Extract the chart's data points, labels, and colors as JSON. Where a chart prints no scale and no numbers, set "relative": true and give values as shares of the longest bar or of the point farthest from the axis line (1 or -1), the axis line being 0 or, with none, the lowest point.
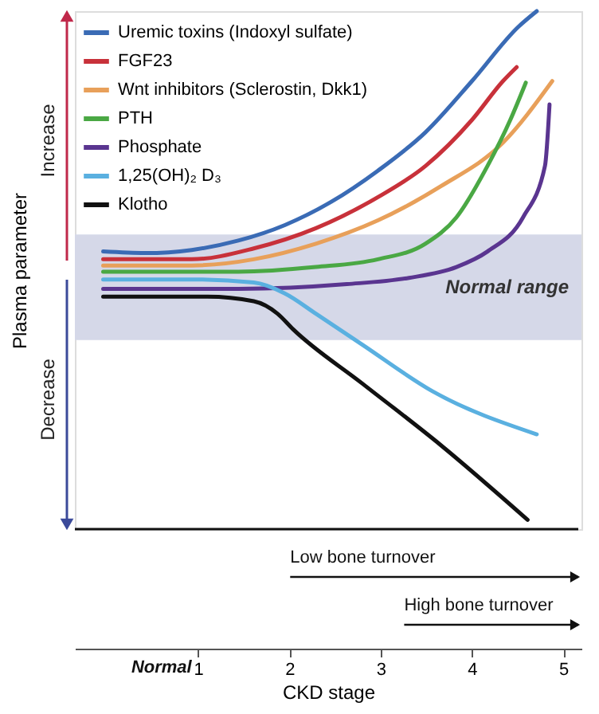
{
  "chart_data": {
    "type": "line",
    "relative": true,
    "ylabel": "Plasma parameter",
    "xlabel": "CKD stage",
    "xlim": [
      -0.35,
      5.2
    ],
    "xticks": [
      1,
      2,
      3,
      4,
      5
    ],
    "grid": false,
    "legend": "top left",
    "marker": "none",
    "line_style": "solid",
    "series": [
      {
        "name": "Uremic toxins (Indoxyl sulfate)",
        "color": "#3a6bb5",
        "x": [
          -0.04,
          0.42,
          0.93,
          1.44,
          1.95,
          2.46,
          2.97,
          3.49,
          4.0,
          4.51,
          4.71
        ],
        "values": [
          0.536,
          0.533,
          0.539,
          0.557,
          0.587,
          0.632,
          0.692,
          0.766,
          0.865,
          0.97,
          1
        ]
      },
      {
        "name": "FGF23",
        "color": "#c8313a",
        "x": [
          -0.04,
          0.93,
          1.61,
          2.29,
          2.97,
          3.49,
          4.0,
          4.34,
          4.49
        ],
        "values": [
          0.521,
          0.521,
          0.542,
          0.581,
          0.641,
          0.701,
          0.79,
          0.865,
          0.892
        ]
      },
      {
        "name": "Wnt inhibitors (Sclerostin, Dkk1)",
        "color": "#e8a05a",
        "x": [
          -0.04,
          0.93,
          1.61,
          2.29,
          2.97,
          3.66,
          4.34,
          4.88
        ],
        "values": [
          0.509,
          0.509,
          0.521,
          0.551,
          0.596,
          0.662,
          0.746,
          0.865
        ]
      },
      {
        "name": "PTH",
        "color": "#4aa844",
        "x": [
          -0.04,
          1.44,
          2.29,
          2.97,
          3.49,
          3.83,
          4.17,
          4.42,
          4.59
        ],
        "values": [
          0.497,
          0.497,
          0.506,
          0.521,
          0.551,
          0.602,
          0.701,
          0.79,
          0.862
        ]
      },
      {
        "name": "Phosphate",
        "color": "#5a3590",
        "x": [
          -0.04,
          1.44,
          2.63,
          3.31,
          3.83,
          4.17,
          4.56,
          4.8,
          4.85
        ],
        "values": [
          0.464,
          0.464,
          0.473,
          0.485,
          0.506,
          0.536,
          0.602,
          0.701,
          0.82
        ]
      },
      {
        "name": "1,25(OH)₂ D₃",
        "color": "#5ab0e0",
        "x": [
          -0.04,
          0.93,
          1.61,
          1.95,
          2.29,
          2.8,
          3.57,
          4.71
        ],
        "values": [
          0.482,
          0.482,
          0.476,
          0.455,
          0.416,
          0.356,
          0.266,
          0.183
        ]
      },
      {
        "name": "Klotho",
        "color": "#111111",
        "x": [
          -0.04,
          1.1,
          1.61,
          1.87,
          2.04,
          2.8,
          3.66,
          4.61
        ],
        "values": [
          0.449,
          0.449,
          0.44,
          0.416,
          0.386,
          0.281,
          0.162,
          0.018
        ]
      }
    ],
    "bands": [
      {
        "axis": "y",
        "from": 0.365,
        "to": 0.569,
        "label": "Normal range",
        "color": "#d5d8e8"
      }
    ],
    "annotations": [
      "Increase",
      "Decrease",
      "Low bone turnover",
      "High bone turnover",
      "Normal"
    ]
  }
}
